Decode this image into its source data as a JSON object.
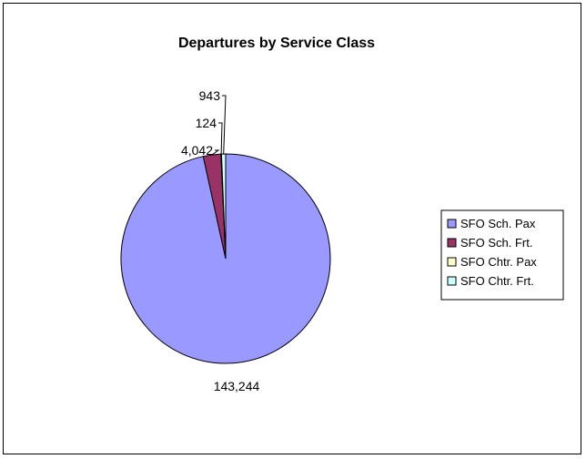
{
  "chart_data": {
    "type": "pie",
    "title": "Departures by Service Class",
    "categories": [
      "SFO Sch. Pax",
      "SFO Sch. Frt.",
      "SFO Chtr. Pax",
      "SFO Chtr. Frt."
    ],
    "values": [
      143244,
      4042,
      124,
      943
    ],
    "data_labels": [
      "143,244",
      "4,042",
      "124",
      "943"
    ],
    "colors": [
      "#9999FF",
      "#993366",
      "#FFFFCC",
      "#CCFFFF"
    ],
    "legend_position": "right",
    "start_angle_deg": 0,
    "direction": "clockwise"
  }
}
